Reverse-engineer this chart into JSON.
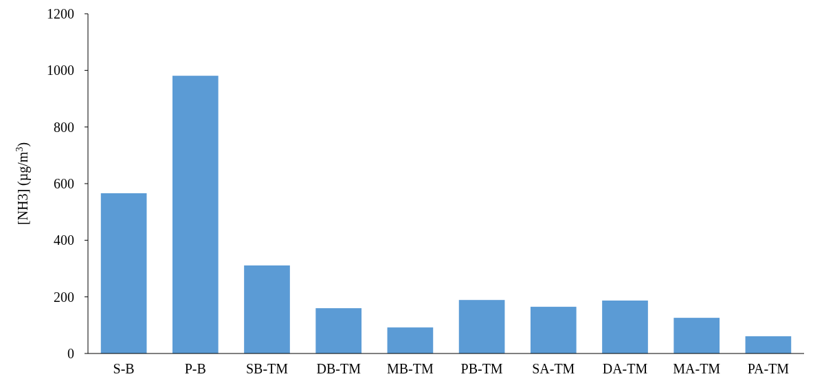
{
  "chart_data": {
    "type": "bar",
    "ylabel": "[NH3] (µg/m$^{3}$)",
    "categories": [
      "S-B",
      "P-B",
      "SB-TM",
      "DB-TM",
      "MB-TM",
      "PB-TM",
      "SA-TM",
      "DA-TM",
      "MA-TM",
      "PA-TM"
    ],
    "values": [
      566,
      981,
      311,
      160,
      92,
      189,
      165,
      187,
      126,
      61
    ],
    "color": "#5b9bd5",
    "ylim": [
      0,
      1200
    ],
    "yticks": [
      0,
      200,
      400,
      600,
      800,
      1000,
      1200
    ],
    "grid": false
  }
}
